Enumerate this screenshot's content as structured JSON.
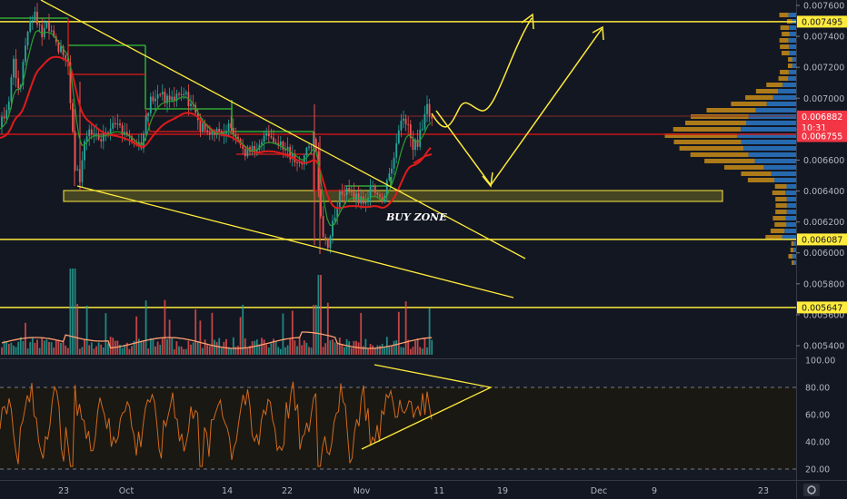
{
  "chart_data": {
    "type": "candlestick",
    "annotation": "BUY ZONE",
    "price_axis": {
      "min": 0.0053,
      "max": 0.0076,
      "ticks": [
        "0.007600",
        "0.007400",
        "0.007200",
        "0.007000",
        "0.006800",
        "0.006600",
        "0.006400",
        "0.006200",
        "0.006000",
        "0.005800",
        "0.005600",
        "0.005400"
      ]
    },
    "time_axis": {
      "labels": [
        "23",
        "Oct",
        "14",
        "22",
        "Nov",
        "11",
        "19",
        "Dec",
        "9",
        "23"
      ]
    },
    "price_badges": [
      {
        "text": "0.007495",
        "value": 0.007495,
        "color": "#ffeb3b"
      },
      {
        "text": "0.006882",
        "value": 0.006882,
        "color": "#f23645"
      },
      {
        "text": "10:31",
        "value": 0.00681,
        "color": "#f23645"
      },
      {
        "text": "0.006755",
        "value": 0.006755,
        "color": "#f23645"
      },
      {
        "text": "0.006087",
        "value": 0.006087,
        "color": "#ffeb3b"
      },
      {
        "text": "0.005647",
        "value": 0.005647,
        "color": "#ffeb3b"
      }
    ],
    "horizontal_levels": [
      0.007495,
      0.006087,
      0.005647
    ],
    "buy_zone": {
      "low": 0.00633,
      "high": 0.00641
    },
    "rsi": {
      "ticks": [
        "100.00",
        "80.00",
        "60.00",
        "40.00",
        "20.00"
      ],
      "upper": 80,
      "lower": 20
    },
    "colors": {
      "up": "#26a69a",
      "down": "#ef5350",
      "level": "#ffeb3b",
      "volume_ma": "#ffa070",
      "rsi": "#d2691e",
      "ma_green": "#2e9d2e",
      "ma_red": "#e01b1b",
      "stair": "#35c535",
      "stair_red": "#e01b1b"
    }
  }
}
